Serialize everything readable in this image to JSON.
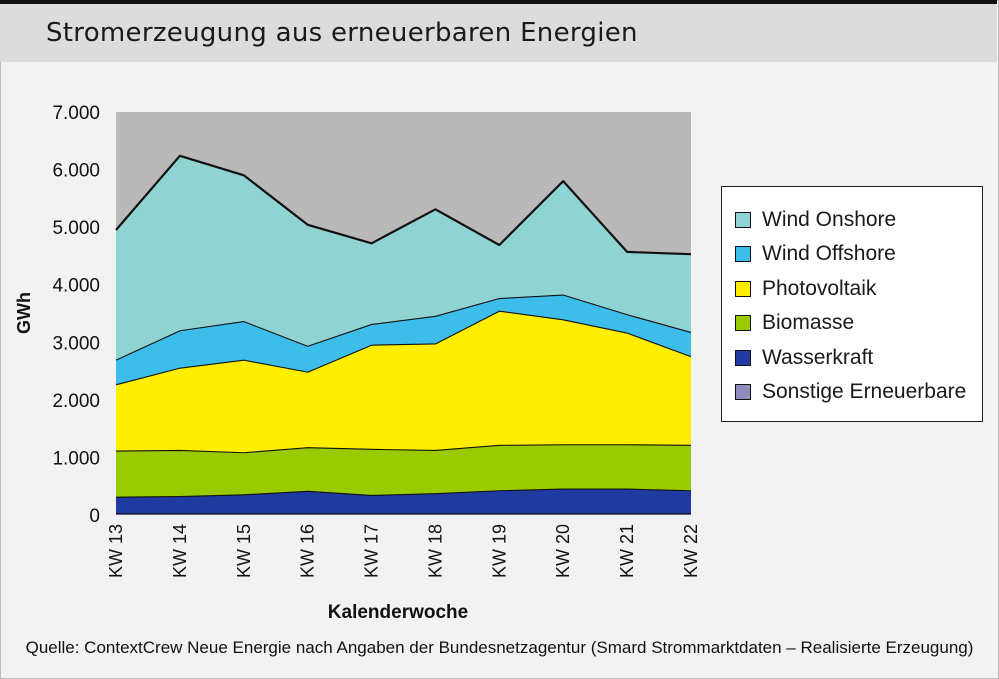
{
  "title": "Stromerzeugung aus erneuerbaren Energien",
  "source": "Quelle: ContextCrew Neue Energie nach Angaben der Bundesnetzagentur (Smard Strommarktdaten – Realisierte Erzeugung)",
  "chart_data": {
    "type": "area",
    "stacked": true,
    "title": "Stromerzeugung aus erneuerbaren Energien",
    "xlabel": "Kalenderwoche",
    "ylabel": "GWh",
    "ylim": [
      0,
      7000
    ],
    "yticks": [
      0,
      1000,
      2000,
      3000,
      4000,
      5000,
      6000,
      7000
    ],
    "ytick_labels": [
      "0",
      "1.000",
      "2.000",
      "3.000",
      "4.000",
      "5.000",
      "6.000",
      "7.000"
    ],
    "categories": [
      "KW 13",
      "KW 14",
      "KW 15",
      "KW 16",
      "KW 17",
      "KW 18",
      "KW 19",
      "KW 20",
      "KW 21",
      "KW 22"
    ],
    "grid": false,
    "legend_position": "right",
    "series": [
      {
        "name": "Sonstige Erneuerbare",
        "color": "#8f8cc0",
        "values": [
          30,
          30,
          30,
          30,
          30,
          30,
          30,
          30,
          30,
          30
        ]
      },
      {
        "name": "Wasserkraft",
        "color": "#1f3aa0",
        "values": [
          290,
          300,
          330,
          390,
          320,
          350,
          400,
          430,
          430,
          400
        ]
      },
      {
        "name": "Biomasse",
        "color": "#9acb00",
        "values": [
          800,
          800,
          730,
          760,
          800,
          750,
          790,
          770,
          770,
          790
        ]
      },
      {
        "name": "Photovoltaik",
        "color": "#ffee00",
        "values": [
          1150,
          1430,
          1610,
          1310,
          1810,
          1850,
          2330,
          2170,
          1940,
          1540
        ]
      },
      {
        "name": "Wind Offshore",
        "color": "#3cbdea",
        "values": [
          430,
          650,
          670,
          450,
          360,
          480,
          220,
          430,
          320,
          420
        ]
      },
      {
        "name": "Wind Onshore",
        "color": "#8fd3d3",
        "values": [
          2250,
          3030,
          2530,
          2100,
          1400,
          1850,
          920,
          1970,
          1080,
          1350
        ]
      }
    ],
    "background_color": "#b9b9b9"
  }
}
